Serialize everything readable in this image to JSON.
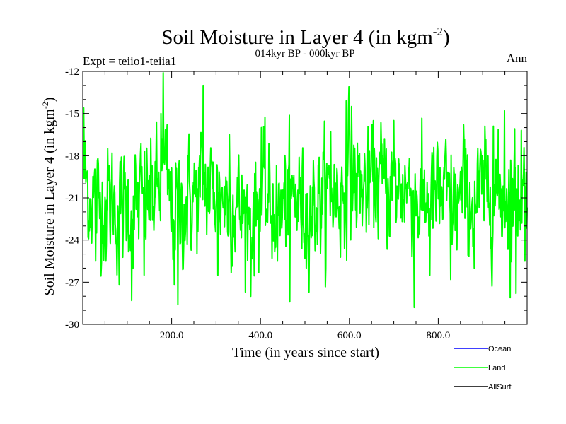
{
  "chart_data": {
    "type": "line",
    "title": "Soil Moisture in Layer 4 (in kgm",
    "title_sup": "-2",
    "title_close": ")",
    "subtitle": "014kyr BP - 000kyr BP",
    "left_label": "Expt = teiio1-teiia1",
    "right_label": "Ann",
    "xlabel": "Time (in years since start)",
    "ylabel": "Soil Moisture in Layer 4 (in kgm",
    "ylabel_sup": "-2",
    "ylabel_close": ")",
    "xlim": [
      0,
      1000
    ],
    "ylim": [
      -30,
      -12
    ],
    "xticks": [
      200,
      400,
      600,
      800
    ],
    "xtick_labels": [
      "200.0",
      "400.0",
      "600.0",
      "800.0"
    ],
    "yticks": [
      -30,
      -27,
      -24,
      -21,
      -18,
      -15,
      -12
    ],
    "ytick_labels": [
      "-30",
      "-27",
      "-24",
      "-21",
      "-18",
      "-15",
      "-12"
    ],
    "legend": [
      {
        "name": "Ocean",
        "color": "#0000ff"
      },
      {
        "name": "Land",
        "color": "#00ff00"
      },
      {
        "name": "AllSurf",
        "color": "#000000"
      }
    ],
    "series": [
      {
        "name": "Land",
        "color": "#00ff00",
        "x_start": 1,
        "x_step": 1,
        "anchor_x": [
          0,
          20,
          40,
          60,
          80,
          100,
          110,
          130,
          150,
          170,
          180,
          190,
          200,
          210,
          220,
          240,
          260,
          270,
          280,
          300,
          320,
          340,
          360,
          380,
          400,
          420,
          440,
          460,
          480,
          500,
          520,
          540,
          560,
          580,
          600,
          620,
          640,
          660,
          680,
          700,
          720,
          740,
          760,
          780,
          800,
          820,
          840,
          860,
          880,
          900,
          920,
          940,
          960,
          980,
          1000
        ],
        "anchor_y": [
          -19,
          -21,
          -21.5,
          -21,
          -22,
          -21.5,
          -22,
          -21,
          -21,
          -20.5,
          -19,
          -20,
          -22,
          -21.5,
          -22,
          -21,
          -21,
          -19.5,
          -20.5,
          -20.5,
          -21,
          -21.5,
          -22,
          -22.5,
          -21,
          -21.5,
          -22,
          -21.5,
          -21,
          -22,
          -21.5,
          -21,
          -20.5,
          -21,
          -19.5,
          -20,
          -20.5,
          -19.5,
          -20,
          -20.5,
          -20,
          -20.5,
          -21.5,
          -21,
          -21,
          -21,
          -21.5,
          -21,
          -21.5,
          -20.5,
          -20.5,
          -21,
          -20.5,
          -20.5,
          -20
        ],
        "noise_sd": 1.9,
        "spikes": [
          {
            "x": 2,
            "y": -14.6
          },
          {
            "x": 12,
            "y": -23.8
          },
          {
            "x": 29,
            "y": -25.5
          },
          {
            "x": 52,
            "y": -25.5
          },
          {
            "x": 82,
            "y": -27.2
          },
          {
            "x": 110,
            "y": -28.3
          },
          {
            "x": 138,
            "y": -26.5
          },
          {
            "x": 176,
            "y": -15.0
          },
          {
            "x": 181,
            "y": -12.1
          },
          {
            "x": 190,
            "y": -15.8
          },
          {
            "x": 206,
            "y": -27.2
          },
          {
            "x": 214,
            "y": -28.6
          },
          {
            "x": 271,
            "y": -13.0
          },
          {
            "x": 304,
            "y": -26.5
          },
          {
            "x": 330,
            "y": -16.5
          },
          {
            "x": 378,
            "y": -28.0
          },
          {
            "x": 402,
            "y": -16.0
          },
          {
            "x": 438,
            "y": -25.5
          },
          {
            "x": 466,
            "y": -28.4
          },
          {
            "x": 503,
            "y": -26.0
          },
          {
            "x": 558,
            "y": -16.3
          },
          {
            "x": 593,
            "y": -14.1
          },
          {
            "x": 599,
            "y": -13.1
          },
          {
            "x": 605,
            "y": -14.5
          },
          {
            "x": 650,
            "y": -15.8
          },
          {
            "x": 700,
            "y": -15.5
          },
          {
            "x": 746,
            "y": -28.8
          },
          {
            "x": 781,
            "y": -26.5
          },
          {
            "x": 828,
            "y": -26.8
          },
          {
            "x": 857,
            "y": -15.8
          },
          {
            "x": 881,
            "y": -26.0
          },
          {
            "x": 924,
            "y": -15.9
          },
          {
            "x": 949,
            "y": -14.8
          },
          {
            "x": 962,
            "y": -28.1
          },
          {
            "x": 975,
            "y": -27.8
          },
          {
            "x": 987,
            "y": -16.2
          },
          {
            "x": 995,
            "y": -25.5
          }
        ]
      }
    ]
  }
}
